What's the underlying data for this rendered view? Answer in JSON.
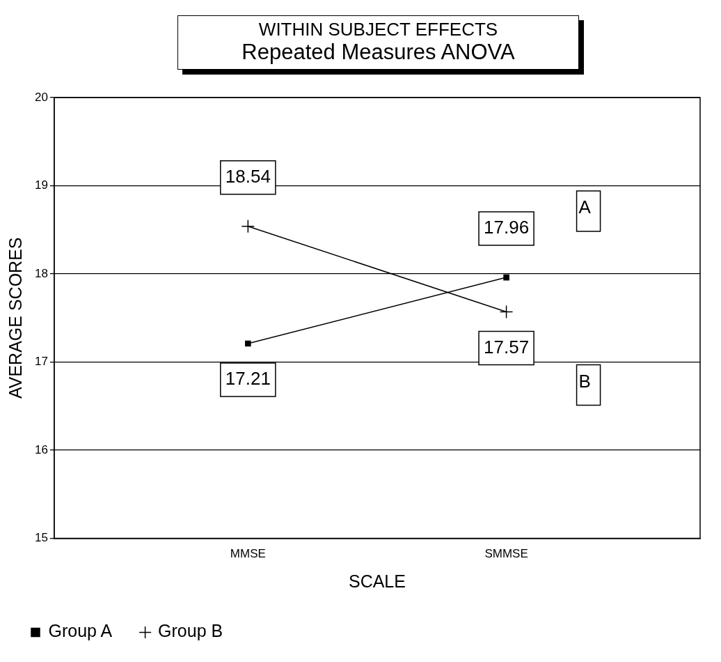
{
  "chart_data": {
    "type": "line",
    "title": "WITHIN SUBJECT EFFECTS",
    "subtitle": "Repeated Measures ANOVA",
    "xlabel": "SCALE",
    "ylabel": "AVERAGE SCORES",
    "categories": [
      null,
      null,
      null,
      "MMSE",
      null,
      null,
      null,
      "SMMSE",
      null,
      null,
      null
    ],
    "series": [
      {
        "name": "Group A",
        "color": "#000000",
        "marker": "square",
        "values": [
          null,
          null,
          null,
          17.21,
          null,
          null,
          null,
          17.96,
          null,
          null,
          null
        ]
      },
      {
        "name": "Group B",
        "color": "#000000",
        "marker": "cross",
        "values": [
          null,
          null,
          null,
          18.54,
          null,
          null,
          null,
          17.57,
          null,
          null,
          null
        ]
      }
    ],
    "ylim": [
      15,
      20
    ],
    "yticks": [
      15,
      16,
      17,
      18,
      19,
      20
    ],
    "grid": "y",
    "legend": "bottom left",
    "data_labels": true,
    "line_style": "solid",
    "annotations": [
      "A",
      "B"
    ]
  }
}
